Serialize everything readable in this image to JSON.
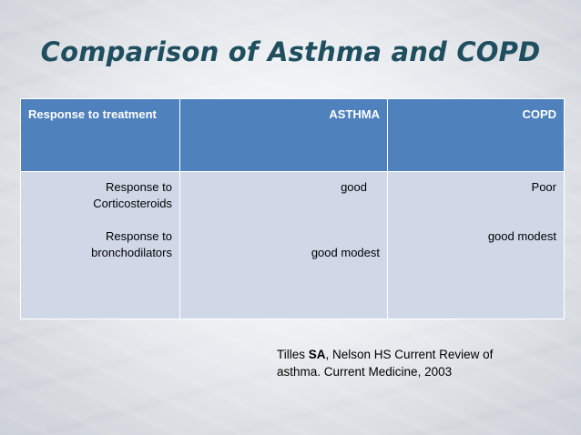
{
  "slide": {
    "title": "Comparison of Asthma and COPD"
  },
  "table": {
    "headers": [
      "Response to treatment",
      "ASTHMA",
      "COPD"
    ],
    "row": {
      "labels": {
        "line1": "Response to",
        "line2": "Corticosteroids",
        "line3": "Response to",
        "line4": "bronchodilators"
      },
      "asthma": {
        "corticosteroids": "good",
        "bronchodilators": "good  modest"
      },
      "copd": {
        "corticosteroids": "Poor",
        "bronchodilators": "good  modest"
      }
    }
  },
  "citation": {
    "prefix": "Tilles ",
    "bold": "SA",
    "suffix": ", Nelson HS Current Review of",
    "line2": "asthma. Current Medicine, 2003"
  }
}
